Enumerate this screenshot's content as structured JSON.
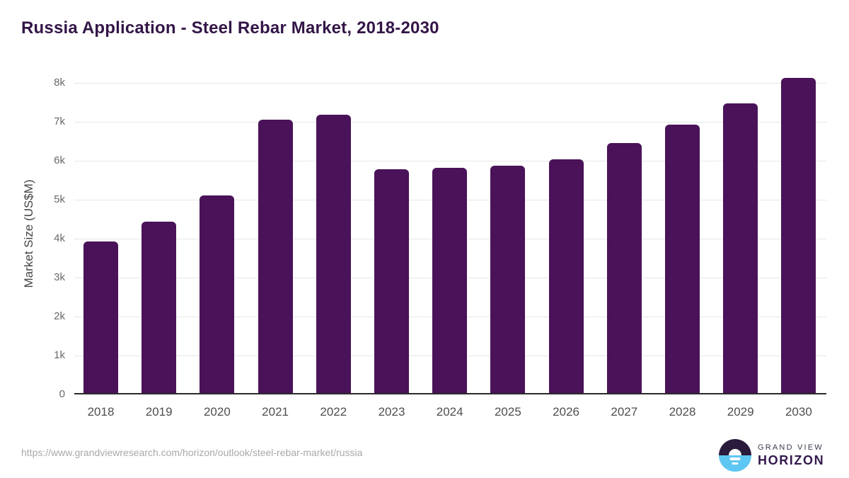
{
  "chart_data": {
    "type": "bar",
    "title": "Russia Application - Steel Rebar Market, 2018-2030",
    "categories": [
      "2018",
      "2019",
      "2020",
      "2021",
      "2022",
      "2023",
      "2024",
      "2025",
      "2026",
      "2027",
      "2028",
      "2029",
      "2030"
    ],
    "values": [
      3930,
      4440,
      5110,
      7050,
      7180,
      5790,
      5810,
      5880,
      6040,
      6460,
      6930,
      7470,
      8120
    ],
    "xlabel": "",
    "ylabel": "Market Size (US$M)",
    "ylim": [
      0,
      8500
    ],
    "yticks": [
      0,
      1000,
      2000,
      3000,
      4000,
      5000,
      6000,
      7000,
      8000
    ],
    "ytick_labels": [
      "0",
      "1k",
      "2k",
      "3k",
      "4k",
      "5k",
      "6k",
      "7k",
      "8k"
    ],
    "grid": true,
    "legend": "none",
    "bar_color": "#4a1259"
  },
  "footer": {
    "source_url": "https://www.grandviewresearch.com/horizon/outlook/steel-rebar-market/russia",
    "logo": {
      "line1": "GRAND VIEW",
      "line2": "HORIZON"
    }
  },
  "colors": {
    "title": "#331647",
    "bar": "#4a1259",
    "gridline": "#e7e7e7",
    "axis": "#2b2b2b",
    "x_ticks": "#4f4f4f",
    "y_ticks": "#686868",
    "url": "#a9a9a9",
    "logo_dark": "#2a1b3d",
    "logo_blue": "#5ec6f2",
    "logo_grand_view": "#3f3a4a",
    "logo_horizon": "#33194e"
  }
}
